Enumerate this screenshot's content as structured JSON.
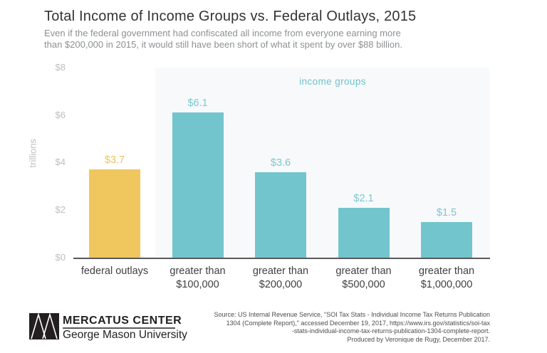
{
  "header": {
    "title": "Total Income of Income Groups vs. Federal Outlays, 2015",
    "subtitle": "Even if the federal government had confiscated all income from everyone earning more\nthan $200,000 in 2015, it would still have been short of what it spent by over $88 billion."
  },
  "chart_data": {
    "type": "bar",
    "title": "Total Income of Income Groups vs. Federal Outlays, 2015",
    "categories": [
      "federal outlays",
      "greater than\n$100,000",
      "greater than\n$200,000",
      "greater than\n$500,000",
      "greater than\n$1,000,000"
    ],
    "values": [
      3.7,
      6.1,
      3.6,
      2.1,
      1.5
    ],
    "value_labels": [
      "$3.7",
      "$6.1",
      "$3.6",
      "$2.1",
      "$1.5"
    ],
    "bar_colors": [
      "#f0c75f",
      "#72c5cd",
      "#72c5cd",
      "#72c5cd",
      "#72c5cd"
    ],
    "value_label_colors": [
      "#edc35c",
      "#7cc7ce",
      "#7cc7ce",
      "#7cc7ce",
      "#7cc7ce"
    ],
    "xlabel": "",
    "ylabel": "trillions",
    "ylim": [
      0,
      8
    ],
    "ytick_values": [
      0,
      2,
      4,
      6,
      8
    ],
    "ytick_labels": [
      "$0",
      "$2",
      "$4",
      "$6",
      "$8"
    ],
    "grid": false,
    "legend_position": "none",
    "annotation": "income groups",
    "highlight_panel": "light gray panel behind the four income-group bars"
  },
  "footer": {
    "logo_icon": "mercatus-m-logo",
    "org_name": "MERCATUS CENTER",
    "org_sub": "George Mason University",
    "source_text": "Source: US Internal Revenue Service, \"SOI Tax Stats - Individual Income Tax Returns Publication\n1304 (Complete Report),\" accessed December 19, 2017, https://www.irs.gov/statistics/soi-tax\n-stats-individual-income-tax-returns-publication-1304-complete-report.\nProduced by Veronique de Rugy, December 2017."
  },
  "colors": {
    "gold": "#f0c75f",
    "teal": "#72c5cd",
    "annotation_teal": "#6fc3cb",
    "axis": "#58595b",
    "panel": "#f8f9fb",
    "title_text": "#333333",
    "subtitle_text": "#8e9093",
    "tick_text": "#bcbec0",
    "category_text": "#414042",
    "logo_dark": "#231f20"
  }
}
